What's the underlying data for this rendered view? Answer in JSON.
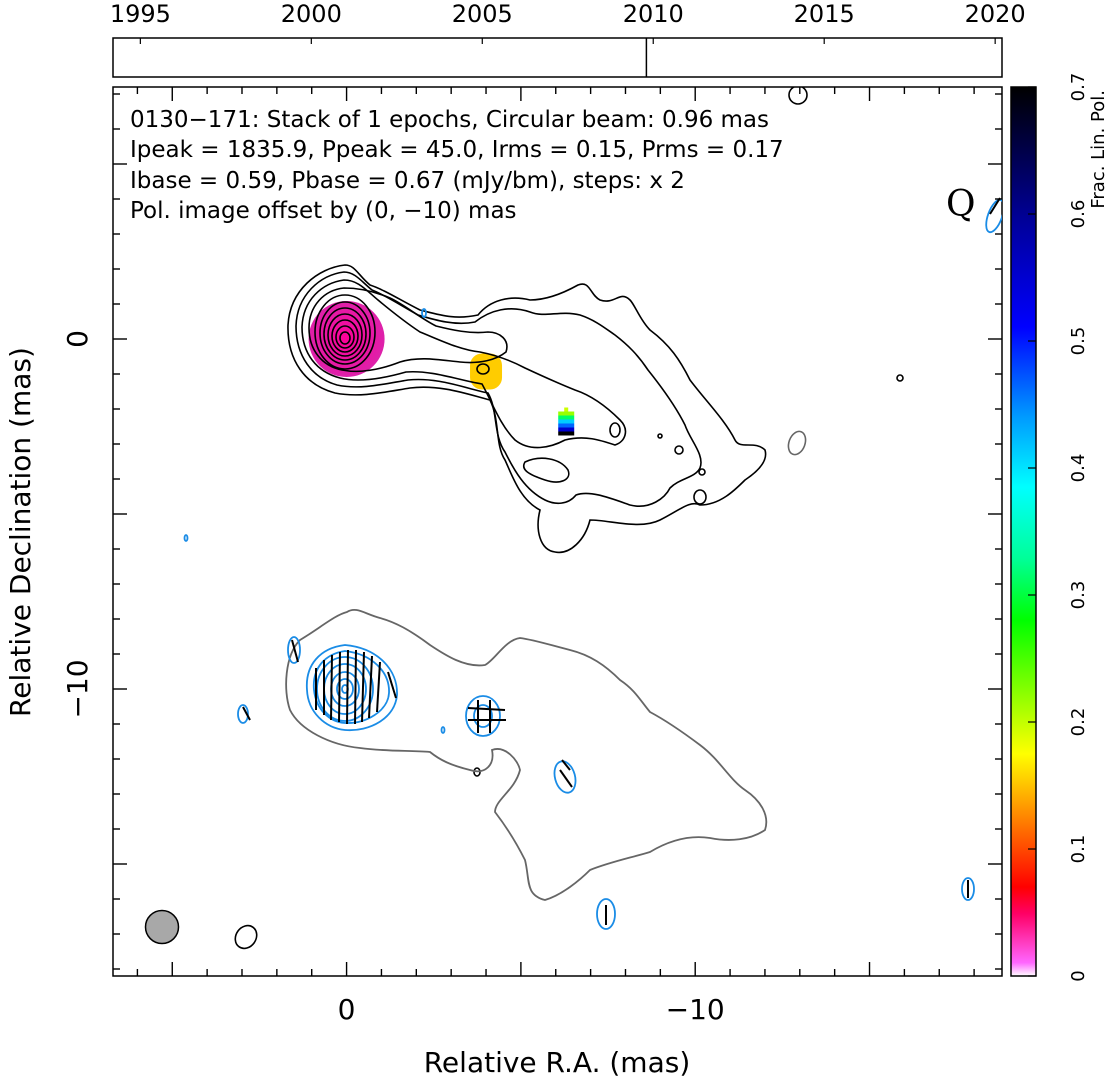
{
  "chart_data": {
    "type": "contour",
    "source": "0130−171",
    "annotations": {
      "line1": "0130−171: Stack of 1 epochs, Circular beam: 0.96 mas",
      "line2": "Ipeak = 1835.9, Ppeak = 45.0, Irms = 0.15, Prms = 0.17",
      "line3": "Ibase = 0.59, Pbase = 0.67 (mJy/bm), steps: x 2",
      "line4": "Pol. image offset by (0, −10) mas",
      "quality_flag": "Q"
    },
    "values": {
      "epochs": 1,
      "beam_mas": 0.96,
      "Ipeak": 1835.9,
      "Ppeak": 45.0,
      "Irms": 0.15,
      "Prms": 0.17,
      "Ibase": 0.59,
      "Pbase": 0.67,
      "pol_offset_mas": [
        0,
        -10
      ]
    },
    "xlabel": "Relative R.A. (mas)",
    "ylabel": "Relative Declination (mas)",
    "xlim": [
      6.7,
      -18.8
    ],
    "ylim": [
      -18.2,
      7.2
    ],
    "x_ticks": [
      "0",
      "−10"
    ],
    "y_ticks": [
      "0",
      "−10"
    ],
    "timeline": {
      "ticks": [
        "1995",
        "2000",
        "2005",
        "2010",
        "2015",
        "2020"
      ],
      "range": [
        1994.2,
        2020.2
      ],
      "epochs": [
        2009.8
      ]
    },
    "colorbar": {
      "label": "Frac. Lin. Pol.",
      "range": [
        0,
        0.7
      ],
      "ticks": [
        "0",
        "0.1",
        "0.2",
        "0.3",
        "0.4",
        "0.5",
        "0.6",
        "0.7"
      ]
    },
    "colors": {
      "stokes_i": "#000000",
      "pol_contours": "#1a8ce6",
      "offset_text": "#1a8ce6",
      "outline": "#666666",
      "beam": "#a8a8a8"
    },
    "components": [
      {
        "ra": 0.0,
        "dec": 0.0,
        "frac_pol": 0.02
      },
      {
        "ra": -4.0,
        "dec": -0.9,
        "frac_pol": 0.14
      },
      {
        "ra": -6.3,
        "dec": -2.7,
        "frac_pol": 0.45
      }
    ]
  }
}
